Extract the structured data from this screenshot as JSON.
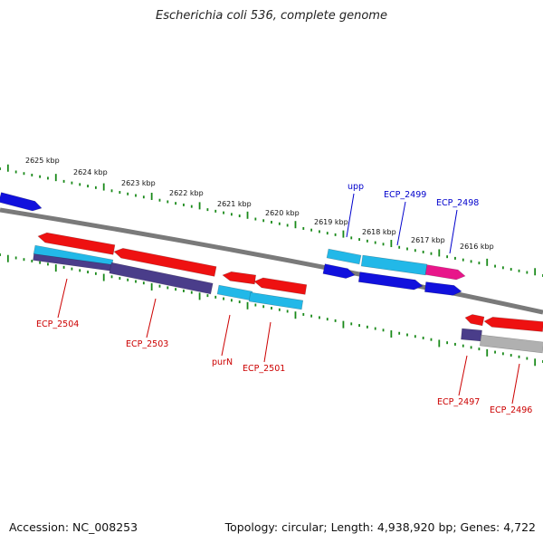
{
  "title": "Escherichia coli 536, complete genome",
  "footer": {
    "accession": "Accession: NC_008253",
    "topology": "Topology: circular; Length: 4,938,920 bp; Genes: 4,722"
  },
  "colors": {
    "backbone": "#7a7a7a",
    "tick": "#1a8a1a",
    "label_forward": "#0000cc",
    "label_reverse": "#cc0000",
    "red": "#ee1111",
    "cyan": "#22b8e8",
    "blue": "#1111dd",
    "magenta": "#e8168a",
    "purple": "#4a3d8a",
    "grey": "#b0b0b0"
  },
  "ticks": [
    {
      "label": "2625 kbp"
    },
    {
      "label": "2624 kbp"
    },
    {
      "label": "2623 kbp"
    },
    {
      "label": "2622 kbp"
    },
    {
      "label": "2621 kbp"
    },
    {
      "label": "2620 kbp"
    },
    {
      "label": "2619 kbp"
    },
    {
      "label": "2618 kbp"
    },
    {
      "label": "2617 kbp"
    },
    {
      "label": "2616 kbp"
    }
  ],
  "gene_labels": [
    {
      "text": "upp",
      "color": "label_forward"
    },
    {
      "text": "ECP_2499",
      "color": "label_forward"
    },
    {
      "text": "ECP_2498",
      "color": "label_forward"
    },
    {
      "text": "ECP_2504",
      "color": "label_reverse"
    },
    {
      "text": "ECP_2503",
      "color": "label_reverse"
    },
    {
      "text": "purN",
      "color": "label_reverse"
    },
    {
      "text": "ECP_2501",
      "color": "label_reverse"
    },
    {
      "text": "ECP_2497",
      "color": "label_reverse"
    },
    {
      "text": "ECP_2496",
      "color": "label_reverse"
    }
  ]
}
